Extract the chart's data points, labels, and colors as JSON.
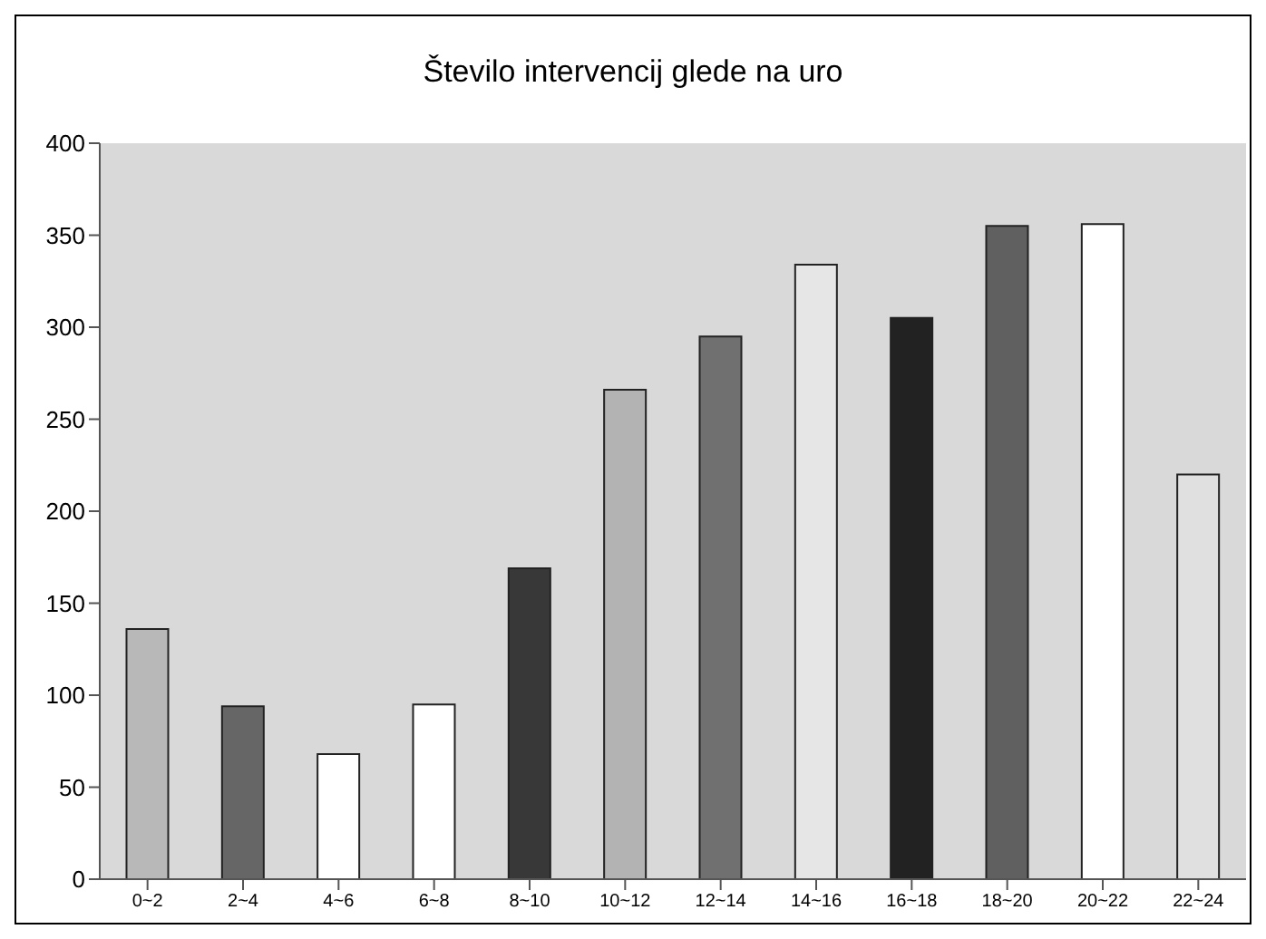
{
  "chart_data": {
    "type": "bar",
    "title": "Število intervencij glede na uro",
    "categories": [
      "0~2",
      "2~4",
      "4~6",
      "6~8",
      "8~10",
      "10~12",
      "12~14",
      "14~16",
      "16~18",
      "18~20",
      "20~22",
      "22~24"
    ],
    "values": [
      136,
      94,
      68,
      95,
      169,
      266,
      295,
      334,
      305,
      355,
      356,
      220
    ],
    "colors": [
      "#b8b8b8",
      "#666666",
      "#ffffff",
      "#ffffff",
      "#383838",
      "#b3b3b3",
      "#707070",
      "#e6e6e6",
      "#222222",
      "#606060",
      "#ffffff",
      "#e0e0e0"
    ],
    "ylim": [
      0,
      400
    ],
    "yticks": [
      0,
      50,
      100,
      150,
      200,
      250,
      300,
      350,
      400
    ],
    "grid": false,
    "legend": false
  }
}
